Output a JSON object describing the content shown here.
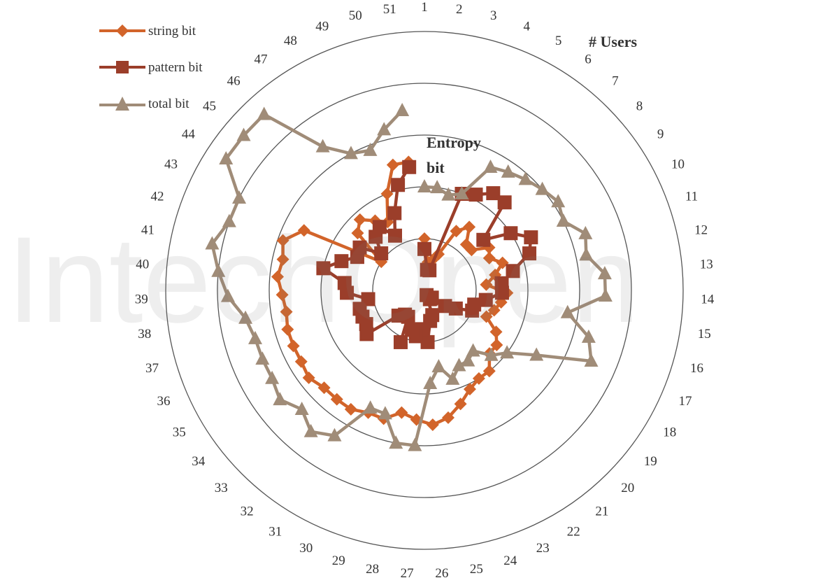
{
  "chart_data": {
    "type": "radar",
    "categories": [
      "1",
      "2",
      "3",
      "4",
      "5",
      "6",
      "7",
      "8",
      "9",
      "10",
      "11",
      "12",
      "13",
      "14",
      "15",
      "16",
      "17",
      "18",
      "19",
      "20",
      "21",
      "22",
      "23",
      "24",
      "25",
      "26",
      "27",
      "28",
      "29",
      "30",
      "31",
      "32",
      "33",
      "34",
      "35",
      "36",
      "37",
      "38",
      "39",
      "40",
      "41",
      "42",
      "43",
      "44",
      "45",
      "46",
      "47",
      "48",
      "49",
      "50",
      "51"
    ],
    "rlim": [
      0,
      5
    ],
    "rings": 5,
    "axis_title": "# Users",
    "radial_title_line1": "Entropy",
    "radial_title_line2": "bit",
    "grid": true,
    "legend_position": "top-left",
    "series": [
      {
        "name": "string bit",
        "color": "#d2642a",
        "marker": "diamond",
        "values": [
          1.0,
          0.55,
          0.6,
          0.75,
          1.3,
          1.5,
          1.2,
          1.2,
          1.5,
          1.4,
          1.6,
          1.4,
          1.2,
          1.6,
          1.5,
          1.4,
          1.3,
          1.6,
          1.75,
          1.75,
          2.0,
          2.0,
          2.1,
          2.3,
          2.5,
          2.6,
          2.5,
          2.4,
          2.6,
          2.6,
          2.7,
          2.7,
          2.7,
          2.8,
          2.75,
          2.75,
          2.75,
          2.7,
          2.75,
          2.85,
          2.8,
          2.9,
          2.6,
          1.0,
          1.7,
          1.85,
          1.65,
          1.5,
          2.0,
          2.5,
          2.5
        ]
      },
      {
        "name": "pattern bit",
        "color": "#9b3e2a",
        "marker": "square",
        "values": [
          0.8,
          0.4,
          0.4,
          2.0,
          2.1,
          2.3,
          2.3,
          1.5,
          2.0,
          2.3,
          2.15,
          1.75,
          1.5,
          1.5,
          1.2,
          1.0,
          1.0,
          0.7,
          0.5,
          0.2,
          0.2,
          0.2,
          0.1,
          0.5,
          0.6,
          1.0,
          0.75,
          0.9,
          0.8,
          1.1,
          0.6,
          0.6,
          0.7,
          1.4,
          1.3,
          1.3,
          1.3,
          1.1,
          1.5,
          1.55,
          2.0,
          1.7,
          1.45,
          1.5,
          1.1,
          1.4,
          1.5,
          1.2,
          1.6,
          2.1,
          2.4
        ]
      },
      {
        "name": "total bit",
        "color": "#a08c78",
        "marker": "triangle",
        "values": [
          2.0,
          2.0,
          1.9,
          2.0,
          2.7,
          2.8,
          2.9,
          3.0,
          3.1,
          3.0,
          3.3,
          3.2,
          3.5,
          3.5,
          2.8,
          3.3,
          3.5,
          2.5,
          2.0,
          1.8,
          1.5,
          1.6,
          1.6,
          1.8,
          1.5,
          1.8,
          3.0,
          3.0,
          2.5,
          2.5,
          3.3,
          3.5,
          3.3,
          3.5,
          3.4,
          3.4,
          3.4,
          3.5,
          3.8,
          4.0,
          4.2,
          4.0,
          4.0,
          4.6,
          4.6,
          4.6,
          3.4,
          3.0,
          2.9,
          3.2,
          3.5
        ]
      }
    ]
  },
  "watermark": "IntechOpen"
}
